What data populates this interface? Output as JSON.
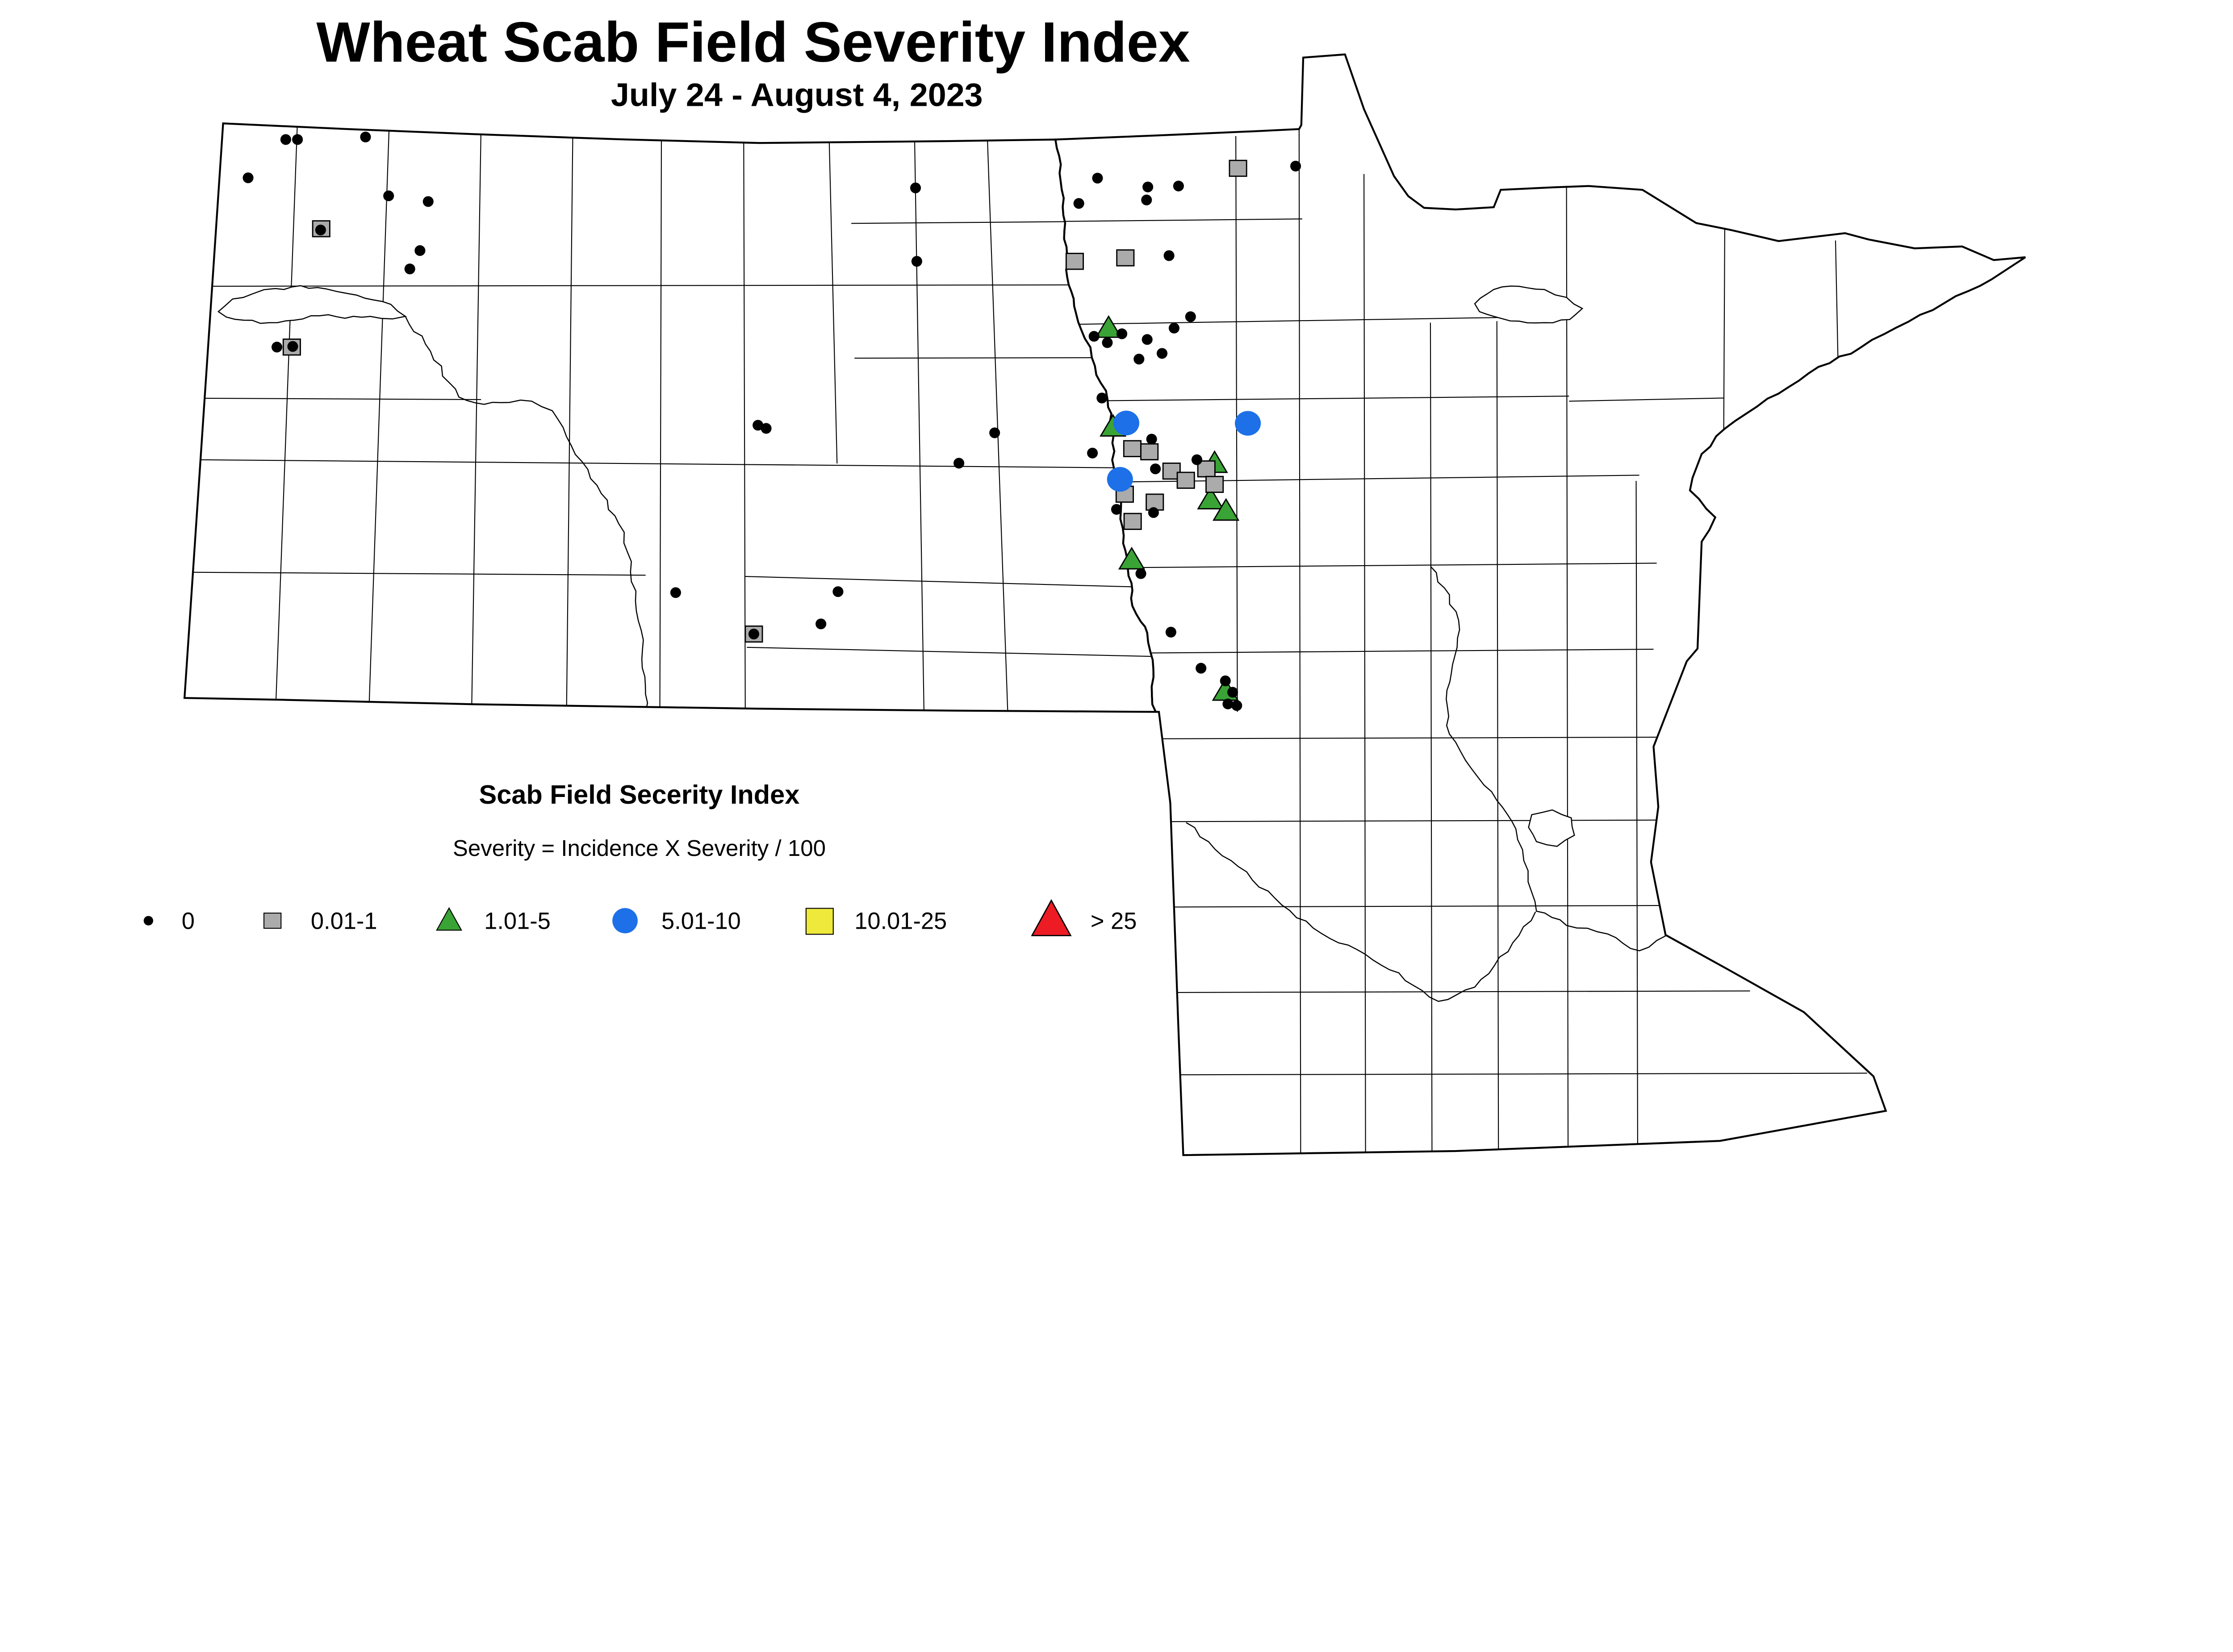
{
  "title": {
    "main": "Wheat Scab Field Severity Index",
    "date_range": "July 24 - August 4, 2023"
  },
  "legend": {
    "title": "Scab Field Secerity Index",
    "formula": "Severity = Incidence X Severity / 100",
    "items": [
      {
        "label": "0",
        "symbol": "dot",
        "color": "#000000"
      },
      {
        "label": "0.01-1",
        "symbol": "square",
        "color": "#ababab"
      },
      {
        "label": "1.01-5",
        "symbol": "triangle",
        "color": "#3aa335"
      },
      {
        "label": "5.01-10",
        "symbol": "circle",
        "color": "#1d70e8"
      },
      {
        "label": "10.01-25",
        "symbol": "square",
        "color": "#efe93c"
      },
      {
        "label": "> 25",
        "symbol": "triangle",
        "color": "#ed1c24"
      }
    ]
  },
  "map_points": {
    "dots": [
      [
        903,
        441
      ],
      [
        940,
        441
      ],
      [
        1155,
        433
      ],
      [
        784,
        562
      ],
      [
        1228,
        619
      ],
      [
        1353,
        637
      ],
      [
        1013,
        727
      ],
      [
        1327,
        792
      ],
      [
        1295,
        850
      ],
      [
        875,
        1097
      ],
      [
        925,
        1095
      ],
      [
        2893,
        594
      ],
      [
        3468,
        563
      ],
      [
        3627,
        591
      ],
      [
        3623,
        632
      ],
      [
        3724,
        588
      ],
      [
        3409,
        643
      ],
      [
        2897,
        826
      ],
      [
        3694,
        808
      ],
      [
        4094,
        525
      ],
      [
        2395,
        1344
      ],
      [
        2421,
        1354
      ],
      [
        3143,
        1368
      ],
      [
        3030,
        1464
      ],
      [
        3482,
        1258
      ],
      [
        3457,
        1063
      ],
      [
        3545,
        1055
      ],
      [
        3499,
        1083
      ],
      [
        3625,
        1073
      ],
      [
        3599,
        1135
      ],
      [
        3672,
        1117
      ],
      [
        3710,
        1037
      ],
      [
        3762,
        1001
      ],
      [
        3639,
        1388
      ],
      [
        3452,
        1432
      ],
      [
        3651,
        1482
      ],
      [
        3782,
        1453
      ],
      [
        3528,
        1610
      ],
      [
        3645,
        1620
      ],
      [
        3605,
        1813
      ],
      [
        2135,
        1873
      ],
      [
        2648,
        1870
      ],
      [
        2594,
        1972
      ],
      [
        2382,
        2004
      ],
      [
        3700,
        1998
      ],
      [
        3795,
        2112
      ],
      [
        3872,
        2152
      ],
      [
        3895,
        2188
      ],
      [
        3880,
        2225
      ],
      [
        3908,
        2230
      ]
    ],
    "squares": [
      [
        1015,
        723
      ],
      [
        922,
        1097
      ],
      [
        3912,
        532
      ],
      [
        3396,
        826
      ],
      [
        3556,
        815
      ],
      [
        2382,
        2004
      ],
      [
        3578,
        1418
      ],
      [
        3632,
        1428
      ],
      [
        3702,
        1489
      ],
      [
        3812,
        1482
      ],
      [
        3747,
        1518
      ],
      [
        3838,
        1531
      ],
      [
        3554,
        1562
      ],
      [
        3649,
        1587
      ],
      [
        3579,
        1648
      ]
    ],
    "triangles": [
      [
        3503,
        1033
      ],
      [
        3517,
        1345
      ],
      [
        3838,
        1460
      ],
      [
        3825,
        1575
      ],
      [
        3874,
        1611
      ],
      [
        3576,
        1765
      ],
      [
        3872,
        2180
      ]
    ],
    "circles": [
      [
        3559,
        1337
      ],
      [
        3943,
        1338
      ],
      [
        3539,
        1515
      ]
    ]
  }
}
